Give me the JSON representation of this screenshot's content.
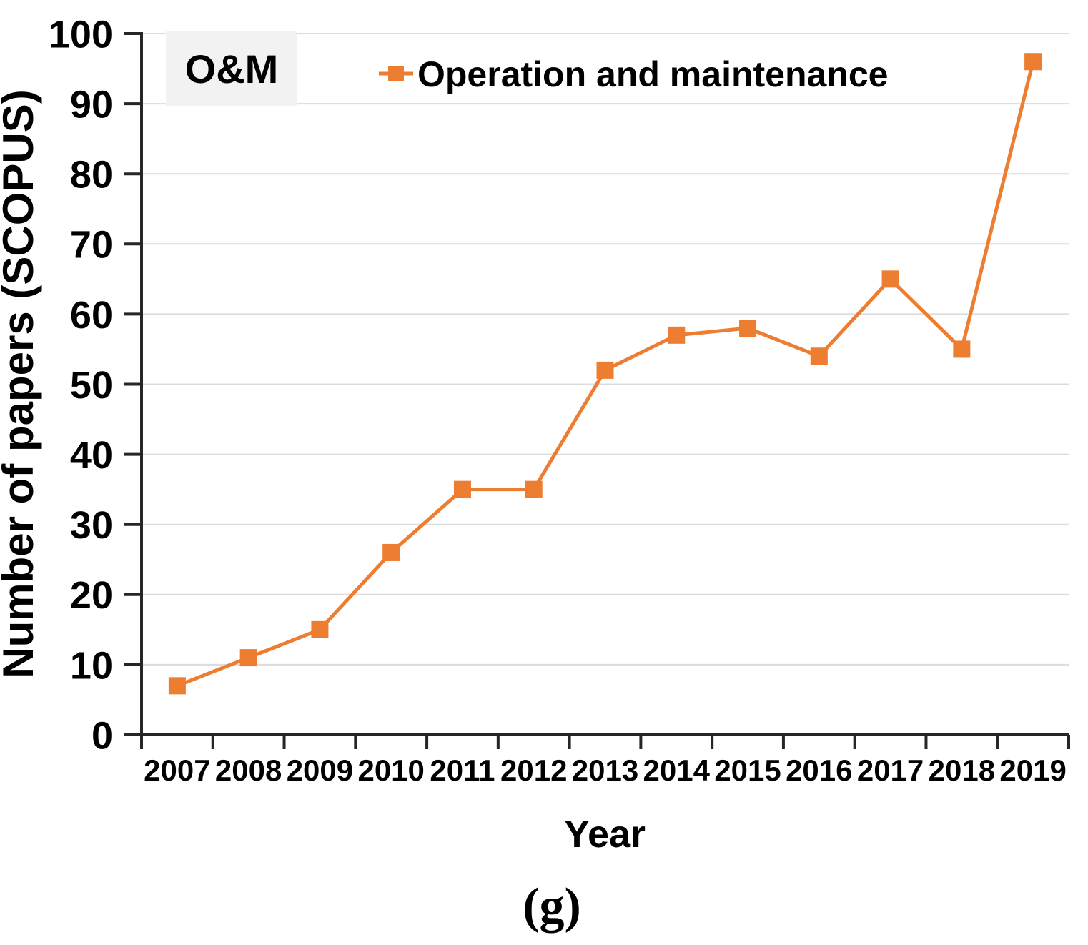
{
  "caption": "(g)",
  "chart_data": {
    "type": "line",
    "title": "",
    "categories": [
      "2007",
      "2008",
      "2009",
      "2010",
      "2011",
      "2012",
      "2013",
      "2014",
      "2015",
      "2016",
      "2017",
      "2018",
      "2019"
    ],
    "series": [
      {
        "name": "Operation and maintenance",
        "values": [
          7,
          11,
          15,
          26,
          35,
          35,
          52,
          57,
          58,
          54,
          65,
          55,
          96
        ],
        "color": "#ED7D31",
        "marker": "square"
      }
    ],
    "xlabel": "Year",
    "ylabel": "Number of papers (SCOPUS)",
    "ylim": [
      0,
      100
    ],
    "yticks": [
      0,
      10,
      20,
      30,
      40,
      50,
      60,
      70,
      80,
      90,
      100
    ],
    "grid": "horizontal",
    "legend_position": "top",
    "annotation": "O&M",
    "colors": {
      "line": "#ED7D31",
      "grid": "#DCDCDC",
      "axis": "#262626",
      "text": "#000000",
      "annotation_bg": "#F2F2F2",
      "background": "#FFFFFF"
    }
  }
}
